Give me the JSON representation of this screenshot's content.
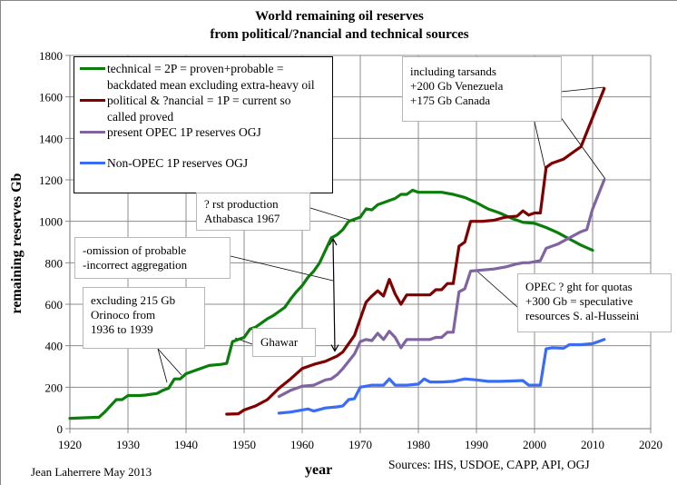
{
  "chart_data": {
    "type": "line",
    "title": "World remaining oil reserves",
    "subtitle": "from political/?nancial and technical sources",
    "xlabel": "year",
    "ylabel": "remaining reserves Gb",
    "xlim": [
      1920,
      2020
    ],
    "ylim": [
      0,
      1800
    ],
    "x_ticks": [
      "1920",
      "1930",
      "1940",
      "1950",
      "1960",
      "1970",
      "1980",
      "1990",
      "2000",
      "2010",
      "2020"
    ],
    "y_ticks": [
      "0",
      "200",
      "400",
      "600",
      "800",
      "1000",
      "1200",
      "1400",
      "1600",
      "1800"
    ],
    "grid": true,
    "legend_position": "top-left",
    "series": [
      {
        "name": "technical = 2P = proven+probable = backdated mean excluding extra-heavy oil",
        "color": "#0a7d0a",
        "points": [
          [
            1920,
            50
          ],
          [
            1922,
            52
          ],
          [
            1925,
            55
          ],
          [
            1926,
            80
          ],
          [
            1928,
            140
          ],
          [
            1929,
            140
          ],
          [
            1930,
            160
          ],
          [
            1932,
            160
          ],
          [
            1933,
            162
          ],
          [
            1935,
            170
          ],
          [
            1936,
            185
          ],
          [
            1937,
            195
          ],
          [
            1938,
            240
          ],
          [
            1939,
            240
          ],
          [
            1940,
            265
          ],
          [
            1942,
            285
          ],
          [
            1944,
            305
          ],
          [
            1946,
            310
          ],
          [
            1947,
            315
          ],
          [
            1948,
            420
          ],
          [
            1949,
            430
          ],
          [
            1950,
            440
          ],
          [
            1951,
            480
          ],
          [
            1952,
            490
          ],
          [
            1953,
            510
          ],
          [
            1954,
            530
          ],
          [
            1955,
            545
          ],
          [
            1956,
            565
          ],
          [
            1957,
            585
          ],
          [
            1958,
            625
          ],
          [
            1959,
            660
          ],
          [
            1960,
            690
          ],
          [
            1961,
            730
          ],
          [
            1962,
            760
          ],
          [
            1963,
            800
          ],
          [
            1964,
            860
          ],
          [
            1965,
            920
          ],
          [
            1966,
            935
          ],
          [
            1967,
            960
          ],
          [
            1968,
            1000
          ],
          [
            1969,
            1010
          ],
          [
            1970,
            1020
          ],
          [
            1971,
            1060
          ],
          [
            1972,
            1055
          ],
          [
            1973,
            1080
          ],
          [
            1974,
            1090
          ],
          [
            1975,
            1100
          ],
          [
            1976,
            1110
          ],
          [
            1977,
            1130
          ],
          [
            1978,
            1130
          ],
          [
            1979,
            1150
          ],
          [
            1980,
            1140
          ],
          [
            1982,
            1140
          ],
          [
            1984,
            1140
          ],
          [
            1986,
            1130
          ],
          [
            1988,
            1115
          ],
          [
            1990,
            1090
          ],
          [
            1992,
            1060
          ],
          [
            1994,
            1040
          ],
          [
            1996,
            1015
          ],
          [
            1998,
            995
          ],
          [
            2000,
            990
          ],
          [
            2002,
            970
          ],
          [
            2004,
            945
          ],
          [
            2006,
            915
          ],
          [
            2008,
            885
          ],
          [
            2010,
            860
          ]
        ]
      },
      {
        "name": "political & ?nancial = 1P = current so called proved",
        "color": "#7f0000",
        "points": [
          [
            1947,
            70
          ],
          [
            1949,
            72
          ],
          [
            1950,
            90
          ],
          [
            1952,
            110
          ],
          [
            1954,
            140
          ],
          [
            1956,
            195
          ],
          [
            1958,
            240
          ],
          [
            1960,
            290
          ],
          [
            1962,
            310
          ],
          [
            1964,
            325
          ],
          [
            1966,
            350
          ],
          [
            1967,
            370
          ],
          [
            1968,
            410
          ],
          [
            1969,
            450
          ],
          [
            1970,
            530
          ],
          [
            1971,
            610
          ],
          [
            1972,
            640
          ],
          [
            1973,
            665
          ],
          [
            1974,
            640
          ],
          [
            1975,
            720
          ],
          [
            1976,
            650
          ],
          [
            1977,
            600
          ],
          [
            1978,
            645
          ],
          [
            1980,
            645
          ],
          [
            1982,
            645
          ],
          [
            1983,
            670
          ],
          [
            1984,
            670
          ],
          [
            1985,
            700
          ],
          [
            1986,
            700
          ],
          [
            1987,
            880
          ],
          [
            1988,
            900
          ],
          [
            1989,
            1000
          ],
          [
            1991,
            1000
          ],
          [
            1993,
            1005
          ],
          [
            1995,
            1020
          ],
          [
            1997,
            1025
          ],
          [
            1998,
            1050
          ],
          [
            1999,
            1030
          ],
          [
            2000,
            1040
          ],
          [
            2001,
            1040
          ],
          [
            2002,
            1260
          ],
          [
            2003,
            1280
          ],
          [
            2005,
            1300
          ],
          [
            2007,
            1340
          ],
          [
            2008,
            1360
          ],
          [
            2010,
            1500
          ],
          [
            2012,
            1640
          ]
        ]
      },
      {
        "name": "present OPEC 1P reserves OGJ",
        "color": "#8064a2",
        "points": [
          [
            1956,
            155
          ],
          [
            1958,
            185
          ],
          [
            1960,
            205
          ],
          [
            1962,
            210
          ],
          [
            1964,
            235
          ],
          [
            1965,
            240
          ],
          [
            1966,
            260
          ],
          [
            1967,
            290
          ],
          [
            1968,
            325
          ],
          [
            1969,
            360
          ],
          [
            1970,
            420
          ],
          [
            1971,
            430
          ],
          [
            1972,
            425
          ],
          [
            1973,
            460
          ],
          [
            1974,
            430
          ],
          [
            1975,
            470
          ],
          [
            1976,
            440
          ],
          [
            1977,
            390
          ],
          [
            1978,
            430
          ],
          [
            1980,
            430
          ],
          [
            1982,
            430
          ],
          [
            1983,
            440
          ],
          [
            1984,
            440
          ],
          [
            1985,
            465
          ],
          [
            1986,
            465
          ],
          [
            1987,
            660
          ],
          [
            1988,
            675
          ],
          [
            1989,
            760
          ],
          [
            1991,
            765
          ],
          [
            1993,
            770
          ],
          [
            1995,
            780
          ],
          [
            1997,
            795
          ],
          [
            1998,
            800
          ],
          [
            1999,
            800
          ],
          [
            2000,
            805
          ],
          [
            2001,
            810
          ],
          [
            2002,
            870
          ],
          [
            2004,
            890
          ],
          [
            2006,
            920
          ],
          [
            2008,
            950
          ],
          [
            2009,
            960
          ],
          [
            2010,
            1060
          ],
          [
            2012,
            1200
          ]
        ]
      },
      {
        "name": "Non-OPEC 1P reserves OGJ",
        "color": "#3a6cf4",
        "points": [
          [
            1956,
            75
          ],
          [
            1958,
            80
          ],
          [
            1960,
            90
          ],
          [
            1961,
            95
          ],
          [
            1962,
            85
          ],
          [
            1964,
            100
          ],
          [
            1966,
            105
          ],
          [
            1967,
            110
          ],
          [
            1968,
            140
          ],
          [
            1969,
            145
          ],
          [
            1970,
            200
          ],
          [
            1972,
            210
          ],
          [
            1974,
            210
          ],
          [
            1975,
            240
          ],
          [
            1976,
            210
          ],
          [
            1978,
            210
          ],
          [
            1980,
            215
          ],
          [
            1981,
            240
          ],
          [
            1982,
            225
          ],
          [
            1984,
            225
          ],
          [
            1986,
            228
          ],
          [
            1988,
            240
          ],
          [
            1990,
            235
          ],
          [
            1992,
            228
          ],
          [
            1994,
            228
          ],
          [
            1996,
            230
          ],
          [
            1998,
            232
          ],
          [
            1999,
            210
          ],
          [
            2001,
            210
          ],
          [
            2002,
            385
          ],
          [
            2003,
            390
          ],
          [
            2005,
            388
          ],
          [
            2006,
            405
          ],
          [
            2008,
            405
          ],
          [
            2010,
            410
          ],
          [
            2012,
            430
          ]
        ]
      }
    ],
    "annotations": [
      {
        "id": "tarsands",
        "lines": [
          "including tarsands",
          "+200 Gb Venezuela",
          "+175 Gb Canada"
        ]
      },
      {
        "id": "first-production",
        "lines": [
          "? rst production",
          "Athabasca 1967"
        ]
      },
      {
        "id": "omission",
        "lines": [
          "-omission of probable",
          "-incorrect aggregation"
        ]
      },
      {
        "id": "orinoco",
        "lines": [
          "excluding 215 Gb",
          "Orinoco from",
          "1936 to 1939"
        ]
      },
      {
        "id": "ghawar",
        "lines": [
          "Ghawar"
        ]
      },
      {
        "id": "opec-fight",
        "lines": [
          "OPEC ? ght for quotas",
          "+300 Gb = speculative",
          "resources S. al-Husseini"
        ]
      }
    ]
  },
  "legend": {
    "items": [
      {
        "lines": [
          "technical = 2P = proven+probable =",
          "backdated mean excluding extra-heavy oil"
        ]
      },
      {
        "lines": [
          "political & ?nancial = 1P = current so",
          "called proved"
        ]
      },
      {
        "lines": [
          "present OPEC 1P reserves OGJ"
        ]
      },
      {
        "lines": [
          "Non-OPEC 1P reserves OGJ"
        ]
      }
    ]
  },
  "footer": {
    "author": "Jean Laherrere May 2013",
    "sources": "Sources: IHS, USDOE, CAPP, API, OGJ"
  }
}
